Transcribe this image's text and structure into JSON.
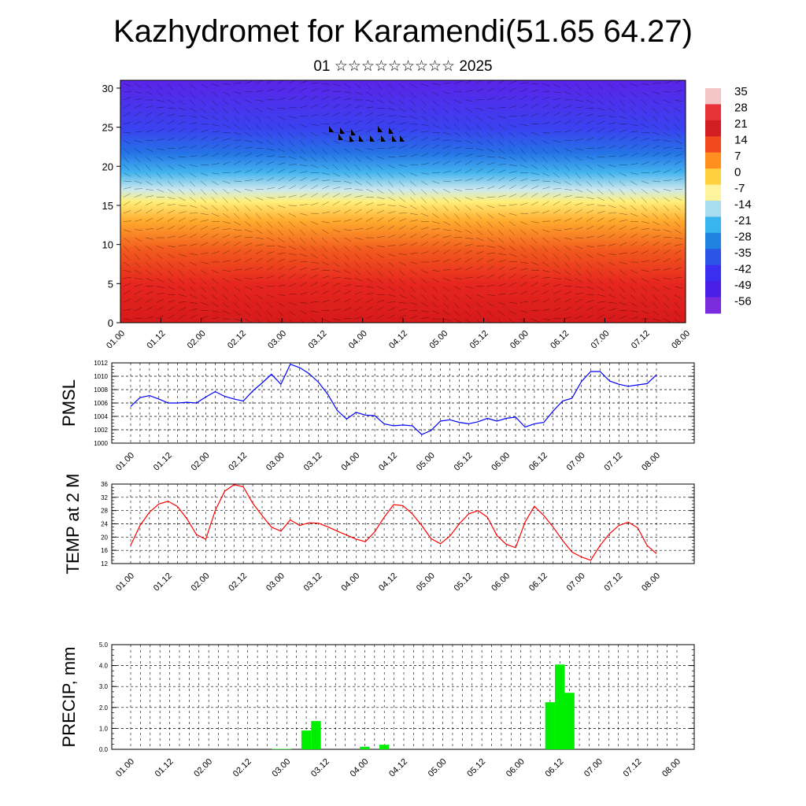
{
  "title": "Kazhydromet for Karamendi(51.65 64.27)",
  "subtitle": "01 ☆☆☆☆☆☆☆☆☆ 2025",
  "chart_data": [
    {
      "type": "heatmap",
      "panel": "vertical-cross-section",
      "x_tick_labels": [
        "01.00",
        "01.12",
        "02.00",
        "02.12",
        "03.00",
        "03.12",
        "04.00",
        "04.12",
        "05.00",
        "05.12",
        "06.00",
        "06.12",
        "07.00",
        "07.12",
        "08.00"
      ],
      "y_ticks": [
        0,
        5,
        10,
        15,
        20,
        25,
        30
      ],
      "ylim": [
        0,
        31
      ],
      "colorbar": {
        "labels": [
          "35",
          "28",
          "21",
          "14",
          "7",
          "0",
          "-7",
          "-14",
          "-21",
          "-28",
          "-35",
          "-42",
          "-49",
          "-56"
        ],
        "colors": [
          "#f4c6c6",
          "#e8333a",
          "#d21e22",
          "#f04a1e",
          "#ff8f21",
          "#ffd13f",
          "#fff39b",
          "#aadcf0",
          "#39b4ee",
          "#1f82e0",
          "#2a55e6",
          "#3a2ef0",
          "#4a1fe6",
          "#7a2bdc"
        ]
      },
      "temperature_profile": [
        {
          "height": 0,
          "value": 30
        },
        {
          "height": 5,
          "value": 25
        },
        {
          "height": 10,
          "value": 18
        },
        {
          "height": 15,
          "value": -2
        },
        {
          "height": 20,
          "value": -30
        },
        {
          "height": 25,
          "value": -50
        },
        {
          "height": 30,
          "value": -58
        }
      ]
    },
    {
      "type": "line",
      "ylabel": "PMSL",
      "x_tick_labels": [
        "01.00",
        "01.12",
        "02.00",
        "02.12",
        "03.00",
        "03.12",
        "04.00",
        "04.12",
        "05.00",
        "05.12",
        "06.00",
        "06.12",
        "07.00",
        "07.12",
        "08.00"
      ],
      "y_tick_labels": [
        "1000",
        "1002",
        "1004",
        "1006",
        "1008",
        "1010",
        "1012"
      ],
      "ylim": [
        1000,
        1012
      ],
      "color": "#0000ff",
      "x": [
        0,
        3,
        6,
        9,
        12,
        15,
        18,
        21,
        24,
        27,
        30,
        33,
        36,
        39,
        42,
        45,
        48,
        51,
        54,
        57,
        60,
        63,
        66,
        69,
        72,
        75,
        78,
        81,
        84,
        87,
        90,
        93,
        96,
        99,
        102,
        105,
        108,
        111,
        114,
        117,
        120,
        123,
        126,
        129,
        132,
        135,
        138,
        141,
        144,
        147,
        150,
        153,
        156,
        159,
        162,
        165,
        168
      ],
      "values": [
        1005.5,
        1006.8,
        1007.1,
        1006.6,
        1006.0,
        1006.0,
        1006.1,
        1006.0,
        1006.9,
        1007.7,
        1007.0,
        1006.6,
        1006.3,
        1007.8,
        1009.0,
        1010.3,
        1008.8,
        1011.8,
        1011.3,
        1010.4,
        1009.1,
        1007.3,
        1004.9,
        1003.6,
        1004.6,
        1004.2,
        1004.1,
        1002.9,
        1002.6,
        1002.7,
        1002.6,
        1001.3,
        1001.9,
        1003.3,
        1003.5,
        1003.1,
        1002.9,
        1003.2,
        1003.7,
        1003.3,
        1003.7,
        1003.9,
        1002.4,
        1002.9,
        1003.1,
        1004.8,
        1006.3,
        1006.7,
        1009.2,
        1010.7,
        1010.7,
        1009.3,
        1008.8,
        1008.5,
        1008.7,
        1008.9,
        1010.2
      ]
    },
    {
      "type": "line",
      "ylabel": "TEMP at 2 M",
      "x_tick_labels": [
        "01.00",
        "01.12",
        "02.00",
        "02.12",
        "03.00",
        "03.12",
        "04.00",
        "04.12",
        "05.00",
        "05.12",
        "06.00",
        "06.12",
        "07.00",
        "07.12",
        "08.00"
      ],
      "y_tick_labels": [
        "12",
        "16",
        "20",
        "24",
        "28",
        "32",
        "36"
      ],
      "ylim": [
        12,
        36
      ],
      "color": "#ff0000",
      "x": [
        0,
        3,
        6,
        9,
        12,
        15,
        18,
        21,
        24,
        27,
        30,
        33,
        36,
        39,
        42,
        45,
        48,
        51,
        54,
        57,
        60,
        63,
        66,
        69,
        72,
        75,
        78,
        81,
        84,
        87,
        90,
        93,
        96,
        99,
        102,
        105,
        108,
        111,
        114,
        117,
        120,
        123,
        126,
        129,
        132,
        135,
        138,
        141,
        144,
        147,
        150,
        153,
        156,
        159,
        162,
        165,
        168
      ],
      "values": [
        17.5,
        23.5,
        27.5,
        30.0,
        30.8,
        29.2,
        25.5,
        20.8,
        19.3,
        28.0,
        33.8,
        35.8,
        35.2,
        30.2,
        26.5,
        23.0,
        21.8,
        25.2,
        23.5,
        24.3,
        24.2,
        23.1,
        21.8,
        20.6,
        19.4,
        18.6,
        21.6,
        26.0,
        29.8,
        29.5,
        27.0,
        23.5,
        19.5,
        18.0,
        20.3,
        24.0,
        27.0,
        28.0,
        26.0,
        20.5,
        17.8,
        16.8,
        24.5,
        29.3,
        26.5,
        23.0,
        19.0,
        15.5,
        14.0,
        13.0,
        17.5,
        21.0,
        23.5,
        24.5,
        22.8,
        17.5,
        15.0
      ]
    },
    {
      "type": "bar",
      "ylabel": "PRECIP, mm",
      "x_tick_labels": [
        "01.00",
        "01.12",
        "02.00",
        "02.12",
        "03.00",
        "03.12",
        "04.00",
        "04.12",
        "05.00",
        "05.12",
        "06.00",
        "06.12",
        "07.00",
        "07.12",
        "08.00"
      ],
      "y_tick_labels": [
        "0.0",
        "1.0",
        "2.0",
        "3.0",
        "4.0",
        "5.0"
      ],
      "ylim": [
        0,
        5
      ],
      "color": "#00ee00",
      "bars": [
        {
          "x": 45,
          "value": 0.02
        },
        {
          "x": 48,
          "value": 0.02
        },
        {
          "x": 54,
          "value": 0.9
        },
        {
          "x": 57,
          "value": 1.35
        },
        {
          "x": 72,
          "value": 0.12
        },
        {
          "x": 78,
          "value": 0.22
        },
        {
          "x": 129,
          "value": 2.25
        },
        {
          "x": 132,
          "value": 4.05
        },
        {
          "x": 135,
          "value": 2.7
        }
      ]
    }
  ]
}
